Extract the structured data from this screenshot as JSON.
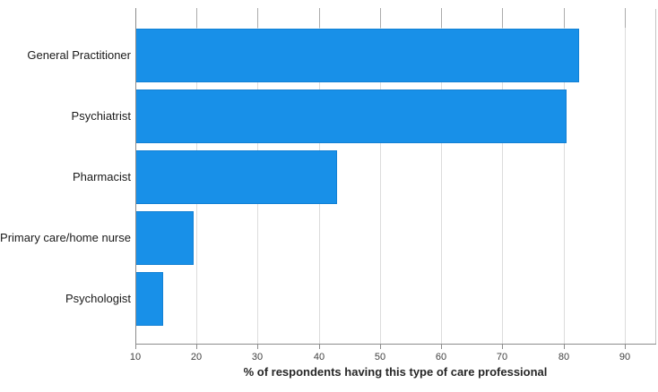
{
  "chart_data": {
    "type": "bar",
    "orientation": "horizontal",
    "title": "",
    "xlabel": "% of respondents having this type of care professional",
    "ylabel": "",
    "categories": [
      "General Practitioner",
      "Psychiatrist",
      "Pharmacist",
      "Primary care/home nurse",
      "Psychologist"
    ],
    "values": [
      82.5,
      80.5,
      43,
      19.5,
      14.5
    ],
    "xlim": [
      10,
      95
    ],
    "xticks": [
      10,
      20,
      30,
      40,
      50,
      60,
      70,
      80,
      90
    ],
    "grid": true,
    "legend": false,
    "bar_color": "#1890E8"
  },
  "colors": {
    "bar": "#1890E8",
    "bar_border": "#1280d4",
    "gridline": "#dcdcdc",
    "frame": "#8c8c8c",
    "top_tick": "#ababab",
    "tick_label": "#3f3f3f",
    "category_label": "#1a1a1a",
    "axis_title": "#262626",
    "background": "#ffffff"
  }
}
